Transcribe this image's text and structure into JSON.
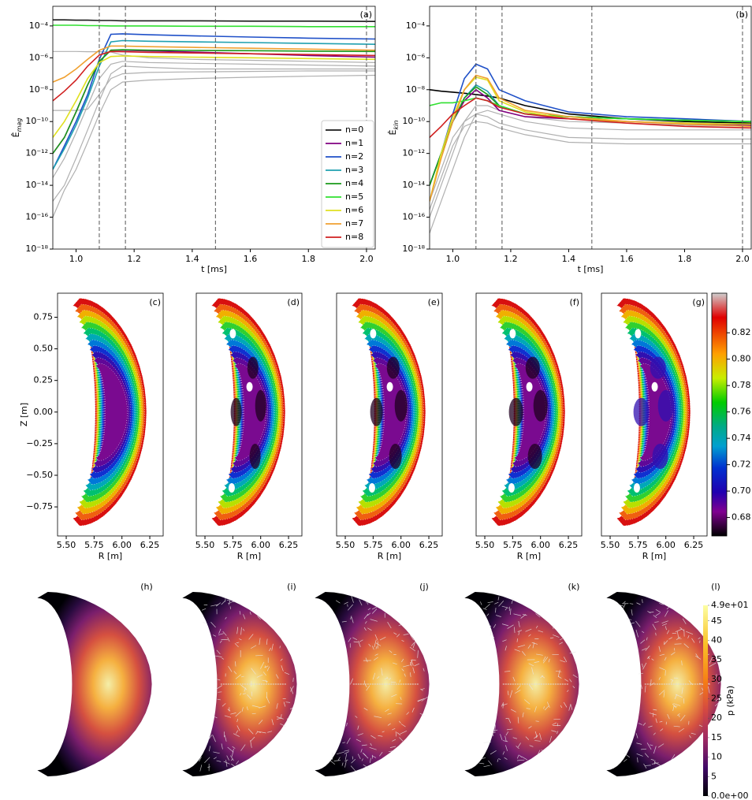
{
  "chart_data": [
    {
      "type": "line",
      "panel_label": "(a)",
      "xlabel": "t [ms]",
      "ylabel": {
        "symbol": "Ê",
        "subscript": "mag"
      },
      "log_y": true,
      "grid": false,
      "legend": "lower right",
      "xlim": [
        0.92,
        2.03
      ],
      "ylim": [
        1e-18,
        0.0017
      ],
      "xticks": [
        {
          "value": 1,
          "label": "1.0"
        },
        1.2,
        1.4,
        1.6,
        1.8,
        {
          "value": 2,
          "label": "2.0"
        }
      ],
      "yticks": [
        {
          "value": 0.0001,
          "label": "10⁻⁴"
        },
        {
          "value": 1e-06,
          "label": "10⁻⁶"
        },
        {
          "value": 1e-08,
          "label": "10⁻⁸"
        },
        {
          "value": 1e-10,
          "label": "10⁻¹⁰"
        },
        {
          "value": 1e-12,
          "label": "10⁻¹²"
        },
        {
          "value": 1e-14,
          "label": "10⁻¹⁴"
        },
        {
          "value": 1e-16,
          "label": "10⁻¹⁶"
        },
        {
          "value": 1e-18,
          "label": "10⁻¹⁸"
        }
      ],
      "vlines": [
        1.08,
        1.17,
        1.48,
        2.0
      ],
      "x": [
        0.92,
        0.96,
        1.0,
        1.04,
        1.08,
        1.12,
        1.16,
        1.25,
        1.4,
        1.6,
        1.8,
        2.03
      ],
      "background_series": {
        "color": "#b0b0b0",
        "values": [
          [
            1e-15,
            1e-14,
            5e-13,
            3e-11,
            2e-09,
            1e-07,
            3e-07,
            2.5e-07,
            2e-07,
            2e-07,
            2e-07,
            2e-07
          ],
          [
            1e-16,
            5e-15,
            1e-13,
            5e-12,
            3e-10,
            1e-08,
            3e-08,
            4e-08,
            5e-08,
            6e-08,
            7e-08,
            8e-08
          ],
          [
            3e-14,
            5e-13,
            2e-11,
            1e-09,
            5e-08,
            4e-07,
            6e-07,
            5e-07,
            4.5e-07,
            4e-07,
            3.5e-07,
            3e-07
          ],
          [
            2.5e-06,
            2.5e-06,
            2.5e-06,
            2.4e-06,
            2.4e-06,
            2.3e-06,
            1.5e-06,
            1e-06,
            8e-07,
            7e-07,
            6e-07,
            5e-07
          ],
          [
            5e-10,
            5e-10,
            5e-10,
            6e-10,
            5e-09,
            5e-08,
            1e-07,
            1.2e-07,
            1.3e-07,
            1.4e-07,
            1.5e-07,
            1.5e-07
          ]
        ]
      },
      "series": [
        {
          "name": "n=0",
          "color": "#1a1a1a",
          "values": [
            0.00024,
            0.00024,
            0.00023,
            0.00023,
            0.00022,
            0.00022,
            0.00021,
            0.00021,
            0.00021,
            0.0002,
            0.0002,
            0.00019
          ]
        },
        {
          "name": "n=1",
          "color": "#800080",
          "values": [
            1e-12,
            1e-11,
            4e-10,
            2e-08,
            6e-07,
            3e-06,
            3e-06,
            2.7e-06,
            2.3e-06,
            1.8e-06,
            1.4e-06,
            1.1e-06
          ]
        },
        {
          "name": "n=2",
          "color": "#1f50c8",
          "values": [
            1e-13,
            3e-12,
            1e-10,
            5e-09,
            8e-07,
            3e-05,
            3.2e-05,
            2.8e-05,
            2.4e-05,
            2e-05,
            1.7e-05,
            1.5e-05
          ]
        },
        {
          "name": "n=3",
          "color": "#1fa0b0",
          "values": [
            1e-13,
            2e-12,
            6e-11,
            3e-09,
            3e-07,
            1e-05,
            1.2e-05,
            1.1e-05,
            1e-05,
            9e-06,
            8e-06,
            7e-06
          ]
        },
        {
          "name": "n=4",
          "color": "#1a9a1a",
          "values": [
            1e-12,
            1e-11,
            4e-10,
            2e-08,
            6e-07,
            3e-06,
            3.2e-06,
            3e-06,
            2.9e-06,
            2.8e-06,
            2.6e-06,
            2.5e-06
          ]
        },
        {
          "name": "n=5",
          "color": "#30e030",
          "values": [
            0.00011,
            0.00011,
            0.00011,
            0.000105,
            0.000105,
            0.0001,
            0.0001,
            0.0001,
            9.5e-05,
            9.5e-05,
            9e-05,
            9e-05
          ]
        },
        {
          "name": "n=6",
          "color": "#e0e020",
          "values": [
            1e-11,
            1e-10,
            2e-09,
            5e-08,
            5e-07,
            1.2e-06,
            1.3e-06,
            1.2e-06,
            1.1e-06,
            1e-06,
            9e-07,
            8e-07
          ]
        },
        {
          "name": "n=7",
          "color": "#f0a030",
          "values": [
            3e-08,
            6e-08,
            2e-07,
            8e-07,
            3e-06,
            5.5e-06,
            5.5e-06,
            5e-06,
            4.5e-06,
            4e-06,
            3.5e-06,
            3e-06
          ]
        },
        {
          "name": "n=8",
          "color": "#d02020",
          "values": [
            2e-09,
            8e-09,
            4e-08,
            3e-07,
            1.5e-06,
            2.5e-06,
            2.4e-06,
            2.2e-06,
            2e-06,
            1.8e-06,
            1.6e-06,
            1.4e-06
          ]
        }
      ]
    },
    {
      "type": "line",
      "panel_label": "(b)",
      "xlabel": "t [ms]",
      "ylabel": {
        "symbol": "Ê",
        "subscript": "kin"
      },
      "log_y": true,
      "grid": false,
      "xlim": [
        0.92,
        2.03
      ],
      "ylim": [
        1e-18,
        0.0017
      ],
      "xticks": [
        {
          "value": 1,
          "label": "1.0"
        },
        1.2,
        1.4,
        1.6,
        1.8,
        {
          "value": 2,
          "label": "2.0"
        }
      ],
      "yticks": [
        {
          "value": 0.0001,
          "label": "10⁻⁴"
        },
        {
          "value": 1e-06,
          "label": "10⁻⁶"
        },
        {
          "value": 1e-08,
          "label": "10⁻⁸"
        },
        {
          "value": 1e-10,
          "label": "10⁻¹⁰"
        },
        {
          "value": 1e-12,
          "label": "10⁻¹²"
        },
        {
          "value": 1e-14,
          "label": "10⁻¹⁴"
        },
        {
          "value": 1e-16,
          "label": "10⁻¹⁶"
        },
        {
          "value": 1e-18,
          "label": "10⁻¹⁸"
        }
      ],
      "vlines": [
        1.08,
        1.17,
        1.48,
        2.0
      ],
      "x": [
        0.92,
        0.96,
        1.0,
        1.04,
        1.08,
        1.12,
        1.16,
        1.25,
        1.4,
        1.6,
        1.8,
        2.03
      ],
      "background_series": {
        "color": "#b0b0b0",
        "values": [
          [
            1e-17,
            1e-15,
            1e-13,
            1e-11,
            3e-10,
            5e-10,
            3e-10,
            1e-10,
            4e-11,
            3e-11,
            3e-11,
            3e-11
          ],
          [
            1e-16,
            1e-14,
            1e-12,
            1e-10,
            1e-09,
            1e-09,
            5e-10,
            2e-10,
            1e-10,
            8e-11,
            6e-11,
            5e-11
          ],
          [
            1e-15,
            1e-13,
            1e-11,
            1e-10,
            3e-10,
            2e-10,
            8e-11,
            3e-11,
            1e-11,
            8e-12,
            8e-12,
            8e-12
          ],
          [
            3e-16,
            3e-14,
            3e-12,
            5e-11,
            1e-10,
            8e-11,
            4e-11,
            1.5e-11,
            5e-12,
            4e-12,
            4e-12,
            4e-12
          ]
        ]
      },
      "series": [
        {
          "name": "n=0",
          "color": "#000000",
          "values": [
            1e-08,
            8e-09,
            7e-09,
            6e-09,
            5e-09,
            4e-09,
            3e-09,
            1e-09,
            3e-10,
            1.5e-10,
            1e-10,
            8e-11
          ]
        },
        {
          "name": "n=1",
          "color": "#800080",
          "values": [
            1e-14,
            1e-12,
            1e-10,
            2e-09,
            1e-08,
            3e-09,
            5e-10,
            2e-10,
            1.5e-10,
            1e-10,
            8e-11,
            6e-11
          ]
        },
        {
          "name": "n=2",
          "color": "#1f50c8",
          "values": [
            1e-14,
            1e-12,
            3e-10,
            5e-08,
            4e-07,
            2e-07,
            1e-08,
            2e-09,
            4e-10,
            2e-10,
            1.5e-10,
            1e-10
          ]
        },
        {
          "name": "n=3",
          "color": "#1fa0b0",
          "values": [
            1e-14,
            1e-12,
            1e-10,
            3e-09,
            2e-08,
            8e-09,
            1e-09,
            3e-10,
            2e-10,
            1.5e-10,
            1.2e-10,
            1e-10
          ]
        },
        {
          "name": "n=4",
          "color": "#1a9a1a",
          "values": [
            1e-14,
            1e-12,
            1e-10,
            3e-09,
            1.5e-08,
            5e-09,
            1e-09,
            3e-10,
            2e-10,
            1.5e-10,
            1.2e-10,
            1e-10
          ]
        },
        {
          "name": "n=5",
          "color": "#30e030",
          "values": [
            1e-09,
            1.5e-09,
            1.5e-09,
            2e-09,
            3e-09,
            2e-09,
            1e-09,
            3e-10,
            2e-10,
            1.5e-10,
            1.2e-10,
            1e-10
          ]
        },
        {
          "name": "n=6",
          "color": "#e0e020",
          "values": [
            1e-15,
            1e-12,
            2e-10,
            1e-08,
            6e-08,
            4e-08,
            2e-09,
            4e-10,
            1.5e-10,
            1e-10,
            8e-11,
            7e-11
          ]
        },
        {
          "name": "n=7",
          "color": "#f0a030",
          "values": [
            1e-15,
            5e-13,
            1e-10,
            1e-08,
            8e-08,
            5e-08,
            3e-09,
            5e-10,
            2e-10,
            1e-10,
            7e-11,
            5e-11
          ]
        },
        {
          "name": "n=8",
          "color": "#d02020",
          "values": [
            1e-11,
            5e-11,
            3e-10,
            1e-09,
            3e-09,
            2e-09,
            8e-10,
            3e-10,
            1.5e-10,
            8e-11,
            5e-11,
            4e-11
          ]
        }
      ]
    },
    {
      "type": "poincare",
      "panels": [
        "(c)",
        "(d)",
        "(e)",
        "(f)",
        "(g)"
      ],
      "xlabel": "R [m]",
      "ylabel": "Z [m]",
      "xlim": [
        5.422,
        6.37
      ],
      "ylim": [
        -0.98,
        0.94
      ],
      "xticks": [
        {
          "value": 5.5,
          "label": "5.50"
        },
        5.75,
        {
          "value": 6,
          "label": "6.00"
        },
        6.25
      ],
      "yticks": [
        0.75,
        {
          "value": 0.5,
          "label": "0.50"
        },
        0.25,
        {
          "value": 0,
          "label": "0.00"
        },
        {
          "value": -0.25,
          "label": "−0.25"
        },
        {
          "value": -0.5,
          "label": "−0.50"
        },
        {
          "value": -0.75,
          "label": "−0.75"
        }
      ],
      "colorbar": {
        "clim": [
          0.666,
          0.85
        ],
        "ticks": [
          0.82,
          {
            "value": 0.8,
            "label": "0.80"
          },
          0.78,
          0.76,
          0.74,
          0.72,
          {
            "value": 0.7,
            "label": "0.70"
          },
          0.68
        ]
      }
    },
    {
      "type": "pressure",
      "panels": [
        "(h)",
        "(i)",
        "(j)",
        "(k)",
        "(l)"
      ],
      "colorbar": {
        "label": "p (kPa)",
        "clim": [
          0,
          49
        ],
        "ticks": [
          {
            "value": 49,
            "label": "4.9e+01"
          },
          45,
          40,
          35,
          30,
          25,
          20,
          15,
          10,
          5,
          {
            "value": 0,
            "label": "0.0e+00"
          }
        ]
      }
    }
  ]
}
